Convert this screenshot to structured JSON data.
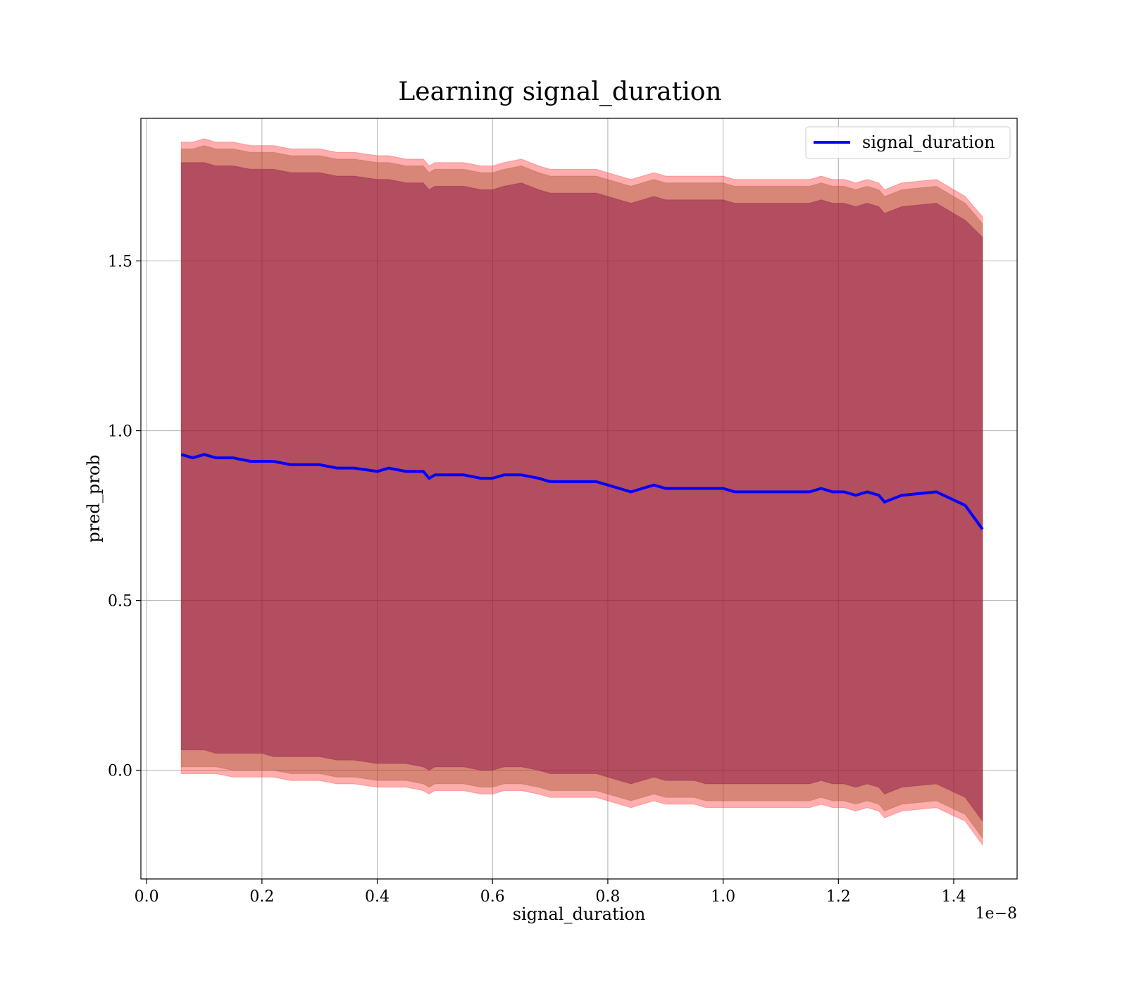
{
  "chart_data": {
    "type": "line",
    "title": "Learning signal_duration",
    "xlabel": "signal_duration",
    "ylabel": "pred_prob",
    "x_offset_label": "1e−8",
    "xlim": [
      -0.01,
      1.51
    ],
    "ylim": [
      -0.32,
      1.92
    ],
    "x_ticks": [
      0.0,
      0.2,
      0.4,
      0.6,
      0.8,
      1.0,
      1.2,
      1.4
    ],
    "x_tick_labels": [
      "0.0",
      "0.2",
      "0.4",
      "0.6",
      "0.8",
      "1.0",
      "1.2",
      "1.4"
    ],
    "y_ticks": [
      0.0,
      0.5,
      1.0,
      1.5
    ],
    "y_tick_labels": [
      "0.0",
      "0.5",
      "1.0",
      "1.5"
    ],
    "grid": true,
    "legend_position": "top-right",
    "colors": {
      "line": "#0000ff",
      "band_outer": "#ff0000",
      "band_middle": "#a0522d",
      "band_inner": "#800040"
    },
    "series": [
      {
        "name": "signal_duration",
        "x": [
          0.06,
          0.08,
          0.1,
          0.12,
          0.15,
          0.18,
          0.2,
          0.22,
          0.25,
          0.28,
          0.3,
          0.33,
          0.36,
          0.4,
          0.42,
          0.45,
          0.48,
          0.49,
          0.5,
          0.52,
          0.55,
          0.58,
          0.6,
          0.62,
          0.65,
          0.68,
          0.7,
          0.72,
          0.75,
          0.78,
          0.8,
          0.82,
          0.84,
          0.86,
          0.88,
          0.9,
          0.92,
          0.95,
          0.97,
          1.0,
          1.02,
          1.05,
          1.08,
          1.1,
          1.12,
          1.15,
          1.17,
          1.19,
          1.21,
          1.23,
          1.25,
          1.27,
          1.28,
          1.31,
          1.37,
          1.42,
          1.45
        ],
        "y": [
          0.93,
          0.92,
          0.93,
          0.92,
          0.92,
          0.91,
          0.91,
          0.91,
          0.9,
          0.9,
          0.9,
          0.89,
          0.89,
          0.88,
          0.89,
          0.88,
          0.88,
          0.86,
          0.87,
          0.87,
          0.87,
          0.86,
          0.86,
          0.87,
          0.87,
          0.86,
          0.85,
          0.85,
          0.85,
          0.85,
          0.84,
          0.83,
          0.82,
          0.83,
          0.84,
          0.83,
          0.83,
          0.83,
          0.83,
          0.83,
          0.82,
          0.82,
          0.82,
          0.82,
          0.82,
          0.82,
          0.83,
          0.82,
          0.82,
          0.81,
          0.82,
          0.81,
          0.79,
          0.81,
          0.82,
          0.78,
          0.71
        ]
      }
    ],
    "bands": [
      {
        "name": "outer",
        "upper": [
          1.85,
          1.85,
          1.86,
          1.85,
          1.85,
          1.84,
          1.84,
          1.84,
          1.83,
          1.83,
          1.83,
          1.82,
          1.82,
          1.81,
          1.81,
          1.8,
          1.8,
          1.78,
          1.79,
          1.79,
          1.79,
          1.78,
          1.78,
          1.79,
          1.8,
          1.78,
          1.77,
          1.77,
          1.77,
          1.77,
          1.76,
          1.75,
          1.74,
          1.75,
          1.76,
          1.75,
          1.75,
          1.75,
          1.75,
          1.75,
          1.74,
          1.74,
          1.74,
          1.74,
          1.74,
          1.74,
          1.75,
          1.74,
          1.74,
          1.73,
          1.74,
          1.73,
          1.71,
          1.73,
          1.74,
          1.69,
          1.63
        ],
        "lower": [
          -0.01,
          -0.01,
          -0.01,
          -0.01,
          -0.02,
          -0.02,
          -0.02,
          -0.02,
          -0.03,
          -0.03,
          -0.03,
          -0.04,
          -0.04,
          -0.05,
          -0.05,
          -0.05,
          -0.06,
          -0.07,
          -0.06,
          -0.06,
          -0.06,
          -0.07,
          -0.07,
          -0.06,
          -0.06,
          -0.07,
          -0.08,
          -0.08,
          -0.08,
          -0.08,
          -0.09,
          -0.1,
          -0.11,
          -0.1,
          -0.09,
          -0.1,
          -0.1,
          -0.1,
          -0.11,
          -0.11,
          -0.11,
          -0.11,
          -0.11,
          -0.11,
          -0.11,
          -0.11,
          -0.1,
          -0.11,
          -0.11,
          -0.12,
          -0.11,
          -0.12,
          -0.14,
          -0.12,
          -0.11,
          -0.15,
          -0.22
        ]
      },
      {
        "name": "middle",
        "upper": [
          1.83,
          1.83,
          1.84,
          1.83,
          1.83,
          1.82,
          1.82,
          1.82,
          1.81,
          1.81,
          1.81,
          1.8,
          1.8,
          1.79,
          1.79,
          1.78,
          1.78,
          1.76,
          1.77,
          1.77,
          1.77,
          1.76,
          1.76,
          1.77,
          1.78,
          1.76,
          1.75,
          1.75,
          1.75,
          1.75,
          1.74,
          1.73,
          1.72,
          1.73,
          1.74,
          1.73,
          1.73,
          1.73,
          1.73,
          1.73,
          1.72,
          1.72,
          1.72,
          1.72,
          1.72,
          1.72,
          1.73,
          1.72,
          1.72,
          1.71,
          1.72,
          1.71,
          1.69,
          1.71,
          1.72,
          1.67,
          1.61
        ],
        "lower": [
          0.01,
          0.01,
          0.01,
          0.01,
          0.0,
          0.0,
          0.0,
          0.0,
          -0.01,
          -0.01,
          -0.01,
          -0.02,
          -0.02,
          -0.03,
          -0.03,
          -0.03,
          -0.04,
          -0.05,
          -0.04,
          -0.04,
          -0.04,
          -0.05,
          -0.05,
          -0.04,
          -0.04,
          -0.05,
          -0.06,
          -0.06,
          -0.06,
          -0.06,
          -0.07,
          -0.08,
          -0.09,
          -0.08,
          -0.07,
          -0.08,
          -0.08,
          -0.08,
          -0.09,
          -0.09,
          -0.09,
          -0.09,
          -0.09,
          -0.09,
          -0.09,
          -0.09,
          -0.08,
          -0.09,
          -0.09,
          -0.1,
          -0.09,
          -0.1,
          -0.12,
          -0.1,
          -0.09,
          -0.13,
          -0.2
        ]
      },
      {
        "name": "inner",
        "upper": [
          1.79,
          1.79,
          1.79,
          1.78,
          1.78,
          1.77,
          1.77,
          1.77,
          1.76,
          1.76,
          1.76,
          1.75,
          1.75,
          1.74,
          1.74,
          1.73,
          1.73,
          1.71,
          1.72,
          1.72,
          1.72,
          1.71,
          1.71,
          1.72,
          1.73,
          1.71,
          1.7,
          1.7,
          1.7,
          1.7,
          1.69,
          1.68,
          1.67,
          1.68,
          1.69,
          1.68,
          1.68,
          1.68,
          1.68,
          1.68,
          1.67,
          1.67,
          1.67,
          1.67,
          1.67,
          1.67,
          1.68,
          1.67,
          1.67,
          1.66,
          1.67,
          1.66,
          1.64,
          1.66,
          1.67,
          1.62,
          1.57
        ],
        "lower": [
          0.06,
          0.06,
          0.06,
          0.05,
          0.05,
          0.05,
          0.05,
          0.04,
          0.04,
          0.04,
          0.04,
          0.03,
          0.03,
          0.02,
          0.02,
          0.02,
          0.01,
          0.0,
          0.01,
          0.01,
          0.01,
          0.0,
          0.0,
          0.01,
          0.01,
          0.0,
          -0.01,
          -0.01,
          -0.01,
          -0.01,
          -0.02,
          -0.03,
          -0.04,
          -0.03,
          -0.02,
          -0.03,
          -0.03,
          -0.03,
          -0.04,
          -0.04,
          -0.04,
          -0.04,
          -0.04,
          -0.04,
          -0.04,
          -0.04,
          -0.03,
          -0.04,
          -0.04,
          -0.05,
          -0.04,
          -0.05,
          -0.07,
          -0.05,
          -0.04,
          -0.08,
          -0.15
        ]
      }
    ]
  }
}
